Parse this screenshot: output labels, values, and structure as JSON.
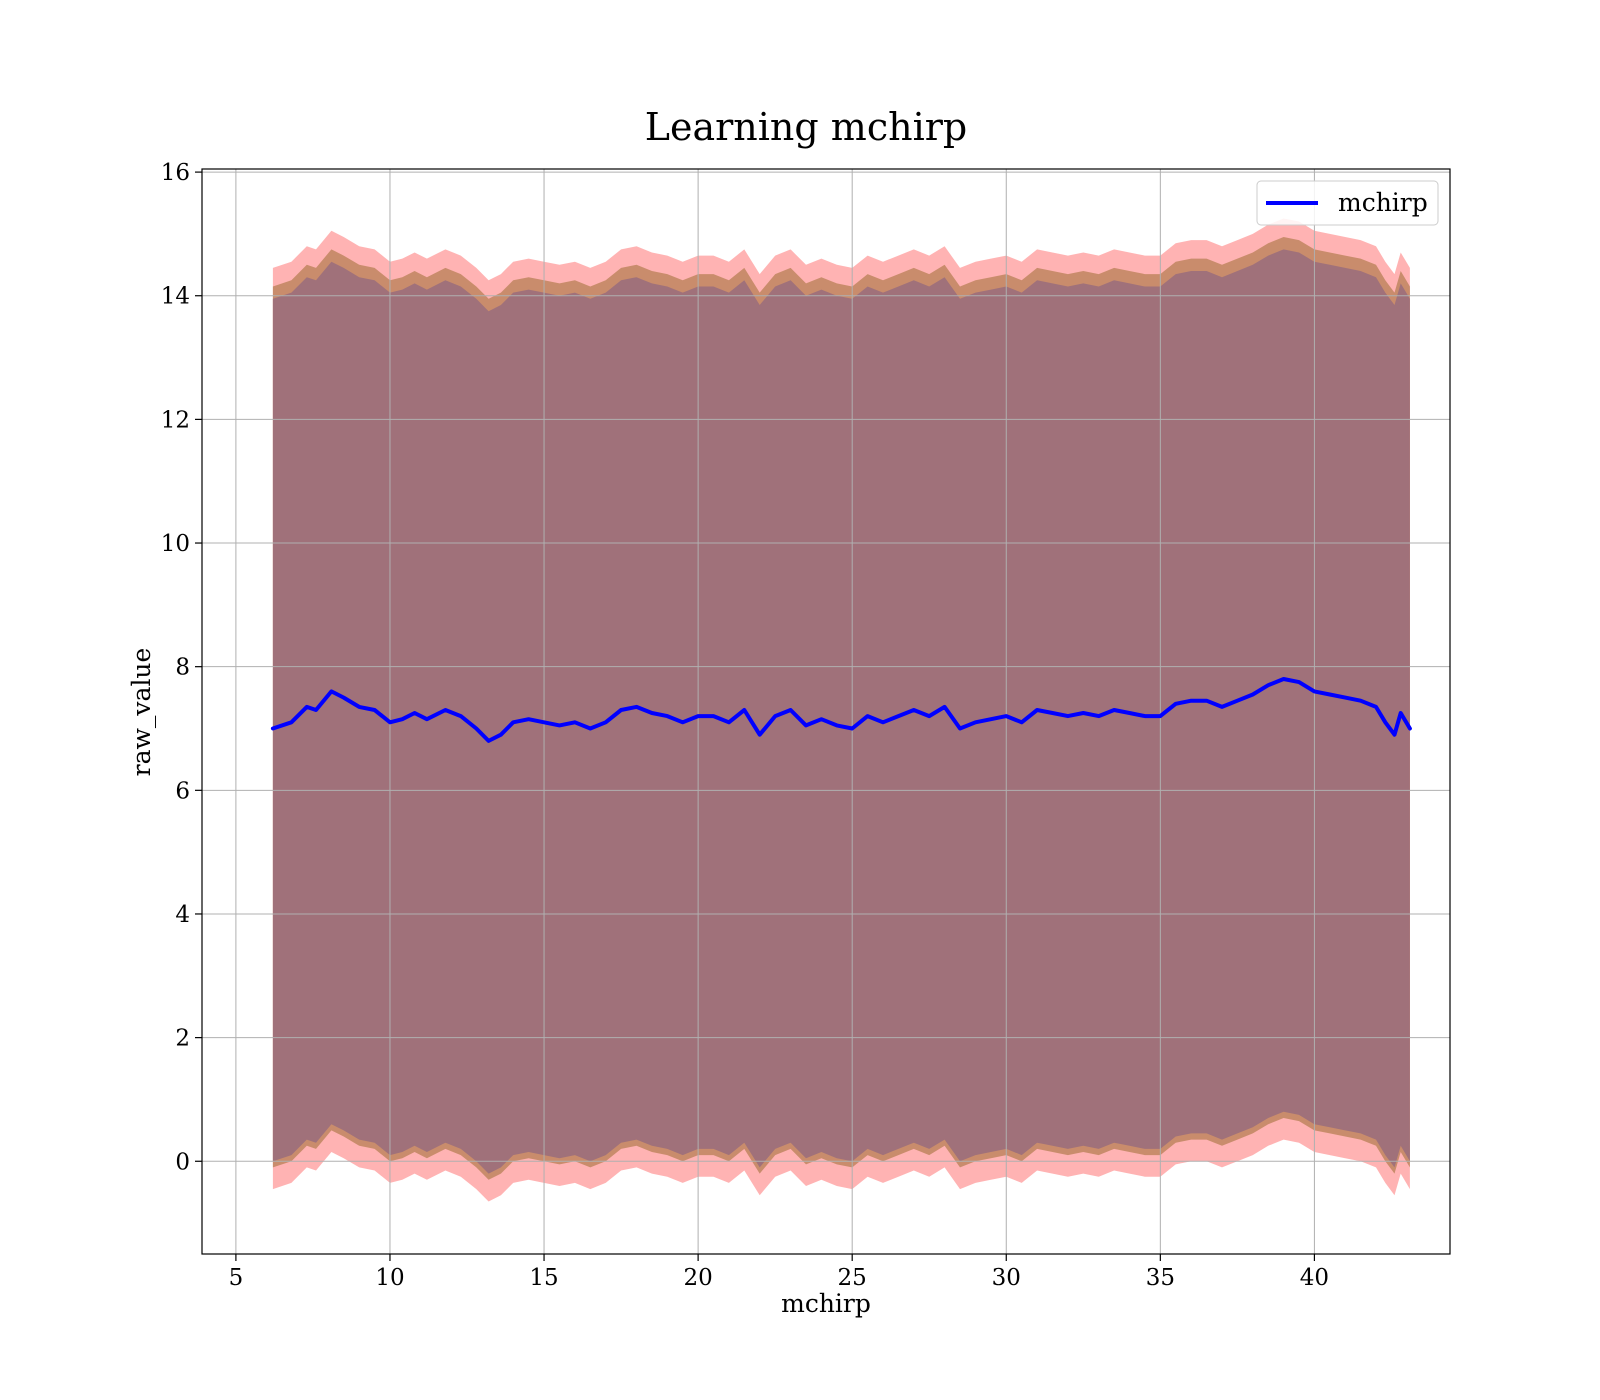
{
  "chart_data": {
    "type": "line",
    "title": "Learning mchirp",
    "xlabel": "mchirp",
    "ylabel": "raw_value",
    "xlim": [
      3.9,
      44.4
    ],
    "ylim": [
      -1.5,
      16.05
    ],
    "xticks": [
      5,
      10,
      15,
      20,
      25,
      30,
      35,
      40
    ],
    "yticks": [
      0,
      2,
      4,
      6,
      8,
      10,
      12,
      14,
      16
    ],
    "grid": true,
    "legend": {
      "placement": "top-right",
      "entries": [
        "mchirp"
      ]
    },
    "colors": {
      "line": "#0000ff",
      "band_outer": "#ff8a8a",
      "band_middle": "#c0855f",
      "band_inner": "#a0717a",
      "grid": "#b0b0b0"
    },
    "series": [
      {
        "name": "mchirp",
        "x": [
          6.2,
          6.8,
          7.3,
          7.6,
          8.1,
          8.5,
          9.0,
          9.5,
          10.0,
          10.4,
          10.8,
          11.2,
          11.8,
          12.3,
          12.8,
          13.2,
          13.6,
          14.0,
          14.5,
          15.0,
          15.5,
          16.0,
          16.5,
          17.0,
          17.5,
          18.0,
          18.5,
          19.0,
          19.5,
          20.0,
          20.5,
          21.0,
          21.5,
          22.0,
          22.5,
          23.0,
          23.5,
          24.0,
          24.5,
          25.0,
          25.5,
          26.0,
          26.5,
          27.0,
          27.5,
          28.0,
          28.5,
          29.0,
          29.5,
          30.0,
          30.5,
          31.0,
          31.5,
          32.0,
          32.5,
          33.0,
          33.5,
          34.0,
          34.5,
          35.0,
          35.5,
          36.0,
          36.5,
          37.0,
          37.5,
          38.0,
          38.5,
          39.0,
          39.5,
          40.0,
          40.5,
          41.0,
          41.5,
          42.0,
          42.3,
          42.6,
          42.8,
          43.1
        ],
        "y": [
          7.0,
          7.1,
          7.35,
          7.3,
          7.6,
          7.5,
          7.35,
          7.3,
          7.1,
          7.15,
          7.25,
          7.15,
          7.3,
          7.2,
          7.0,
          6.8,
          6.9,
          7.1,
          7.15,
          7.1,
          7.05,
          7.1,
          7.0,
          7.1,
          7.3,
          7.35,
          7.25,
          7.2,
          7.1,
          7.2,
          7.2,
          7.1,
          7.3,
          6.9,
          7.2,
          7.3,
          7.05,
          7.15,
          7.05,
          7.0,
          7.2,
          7.1,
          7.2,
          7.3,
          7.2,
          7.35,
          7.0,
          7.1,
          7.15,
          7.2,
          7.1,
          7.3,
          7.25,
          7.2,
          7.25,
          7.2,
          7.3,
          7.25,
          7.2,
          7.2,
          7.4,
          7.45,
          7.45,
          7.35,
          7.45,
          7.55,
          7.7,
          7.8,
          7.75,
          7.6,
          7.55,
          7.5,
          7.45,
          7.35,
          7.1,
          6.9,
          7.25,
          7.0
        ]
      }
    ],
    "bands": [
      {
        "lower_offset": -7.45,
        "upper_offset": 7.45
      },
      {
        "lower_offset": -7.1,
        "upper_offset": 7.15
      },
      {
        "lower_offset": -7.0,
        "upper_offset": 6.95
      }
    ]
  }
}
